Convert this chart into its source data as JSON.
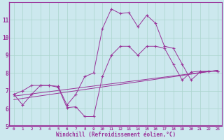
{
  "xlabel": "Windchill (Refroidissement éolien,°C)",
  "background_color": "#cce8ee",
  "grid_color": "#aad4cc",
  "line_color": "#993399",
  "border_color": "#993399",
  "xlim": [
    -0.5,
    23.5
  ],
  "ylim": [
    5,
    12
  ],
  "yticks": [
    5,
    6,
    7,
    8,
    9,
    10,
    11
  ],
  "xticks": [
    0,
    1,
    2,
    3,
    4,
    5,
    6,
    7,
    8,
    9,
    10,
    11,
    12,
    13,
    14,
    15,
    16,
    17,
    18,
    19,
    20,
    21,
    22,
    23
  ],
  "line1_x": [
    0,
    1,
    2,
    3,
    4,
    5,
    6,
    7,
    8,
    9,
    10,
    11,
    12,
    13,
    14,
    15,
    16,
    17,
    18,
    19,
    20,
    21,
    22,
    23
  ],
  "line1_y": [
    6.8,
    7.0,
    7.3,
    7.3,
    7.3,
    7.25,
    6.2,
    6.8,
    7.8,
    8.0,
    10.5,
    11.6,
    11.35,
    11.4,
    10.6,
    11.25,
    10.8,
    9.5,
    9.4,
    8.5,
    7.6,
    8.05,
    8.1,
    8.1
  ],
  "line2_x": [
    0,
    1,
    2,
    3,
    4,
    5,
    6,
    7,
    8,
    9,
    10,
    11,
    12,
    13,
    14,
    15,
    16,
    17,
    18,
    19,
    20,
    21,
    22,
    23
  ],
  "line2_y": [
    6.8,
    6.2,
    6.8,
    7.3,
    7.3,
    7.2,
    6.05,
    6.1,
    5.55,
    5.55,
    7.8,
    9.0,
    9.5,
    9.5,
    9.0,
    9.5,
    9.5,
    9.4,
    8.5,
    7.6,
    8.05,
    8.1,
    8.1,
    8.1
  ],
  "line3_x": [
    0,
    23
  ],
  "line3_y": [
    6.7,
    8.15
  ],
  "line4_x": [
    0,
    23
  ],
  "line4_y": [
    6.5,
    8.15
  ]
}
